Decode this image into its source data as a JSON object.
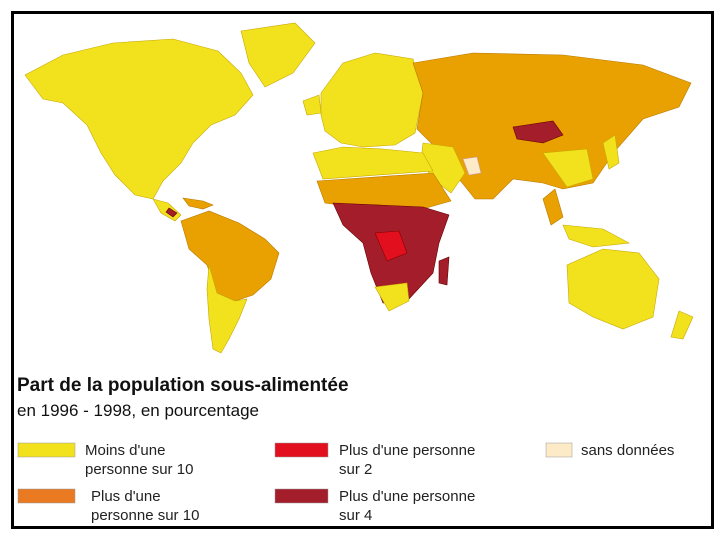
{
  "title": "Part de la population sous-alimentée",
  "subtitle": "en 1996 - 1998, en pourcentage",
  "legend": [
    {
      "lines": [
        "Moins d'une",
        "personne sur 10"
      ],
      "color": "#f2e21e"
    },
    {
      "lines": [
        "Plus d'une",
        "personne sur 10"
      ],
      "color": "#ea7a22"
    },
    {
      "lines": [
        "Plus d'une personne",
        "sur 2"
      ],
      "color": "#e2101e"
    },
    {
      "lines": [
        "Plus d'une personne",
        "sur 4"
      ],
      "color": "#a41d2a"
    },
    {
      "lines": [
        "sans données"
      ],
      "color": "#fdebc8"
    }
  ]
}
